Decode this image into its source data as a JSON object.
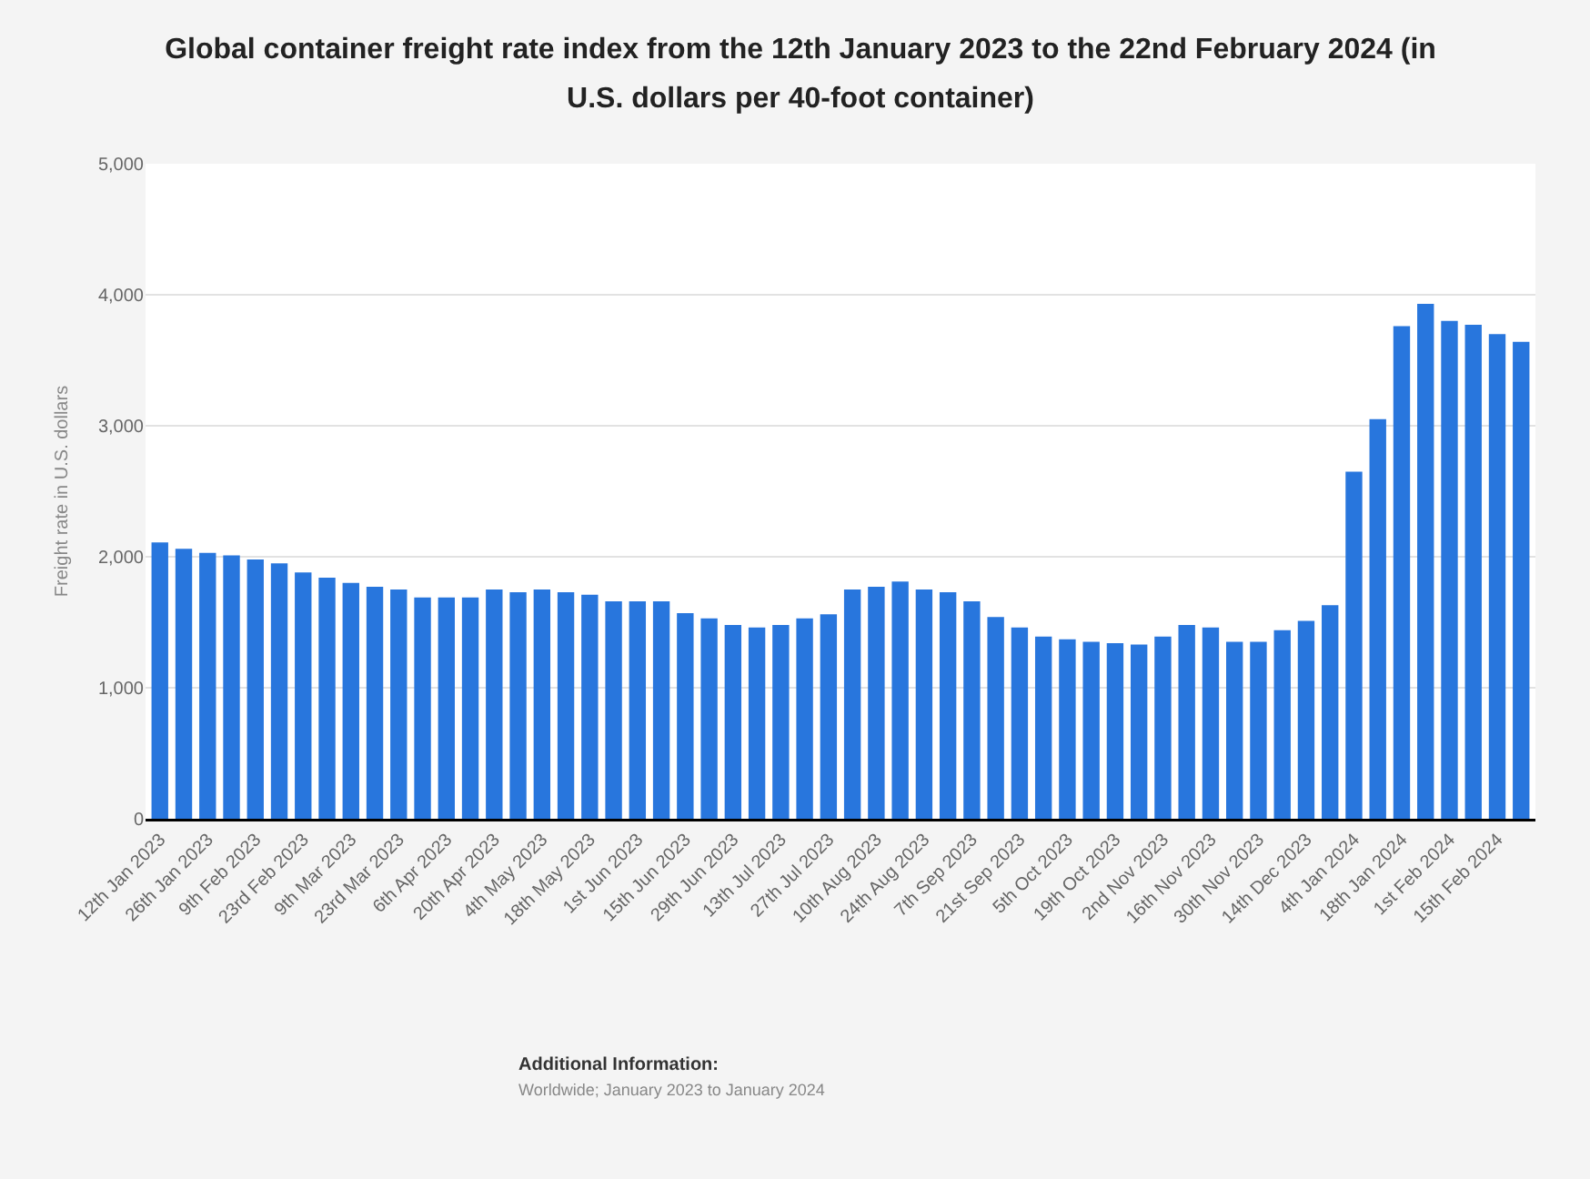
{
  "chart_data": {
    "type": "bar",
    "title": "Global container freight rate index from the 12th January 2023 to the 22nd February 2024 (in U.S. dollars per 40-foot container)",
    "ylabel": "Freight rate in U.S. dollars",
    "categories": [
      "12th Jan 2023",
      null,
      "26th Jan 2023",
      null,
      "9th Feb 2023",
      null,
      "23rd Feb 2023",
      null,
      "9th Mar 2023",
      null,
      "23rd Mar 2023",
      null,
      "6th Apr 2023",
      null,
      "20th Apr 2023",
      null,
      "4th May 2023",
      null,
      "18th May 2023",
      null,
      "1st Jun 2023",
      null,
      "15th Jun 2023",
      null,
      "29th Jun 2023",
      null,
      "13th Jul 2023",
      null,
      "27th Jul 2023",
      null,
      "10th Aug 2023",
      null,
      "24th Aug 2023",
      null,
      "7th Sep 2023",
      null,
      "21st Sep 2023",
      null,
      "5th Oct 2023",
      null,
      "19th Oct 2023",
      null,
      "2nd Nov 2023",
      null,
      "16th Nov 2023",
      null,
      "30th Nov 2023",
      null,
      "14th Dec 2023",
      null,
      "4th Jan 2024",
      null,
      "18th Jan 2024",
      null,
      "1st Feb 2024",
      null,
      "15th Feb 2024",
      null
    ],
    "values": [
      2110,
      2060,
      2030,
      2010,
      1980,
      1950,
      1880,
      1840,
      1800,
      1770,
      1750,
      1690,
      1690,
      1690,
      1750,
      1730,
      1750,
      1730,
      1710,
      1660,
      1660,
      1660,
      1570,
      1530,
      1480,
      1460,
      1480,
      1530,
      1560,
      1750,
      1770,
      1810,
      1750,
      1730,
      1660,
      1540,
      1460,
      1390,
      1370,
      1350,
      1340,
      1330,
      1390,
      1480,
      1460,
      1350,
      1350,
      1440,
      1510,
      1630,
      2650,
      3050,
      3760,
      3930,
      3800,
      3770,
      3700,
      3640
    ],
    "color": "#2876dd",
    "ylim": [
      0,
      5000
    ],
    "yticks": [
      0,
      {
        "value": 1000,
        "label": "1,000"
      },
      {
        "value": 2000,
        "label": "2,000"
      },
      {
        "value": 3000,
        "label": "3,000"
      },
      {
        "value": 4000,
        "label": "4,000"
      },
      {
        "value": 5000,
        "label": "5,000"
      }
    ],
    "grid": "y",
    "legend": false,
    "annotations": [
      "Additional Information:",
      "Worldwide; January 2023 to January 2024"
    ]
  }
}
